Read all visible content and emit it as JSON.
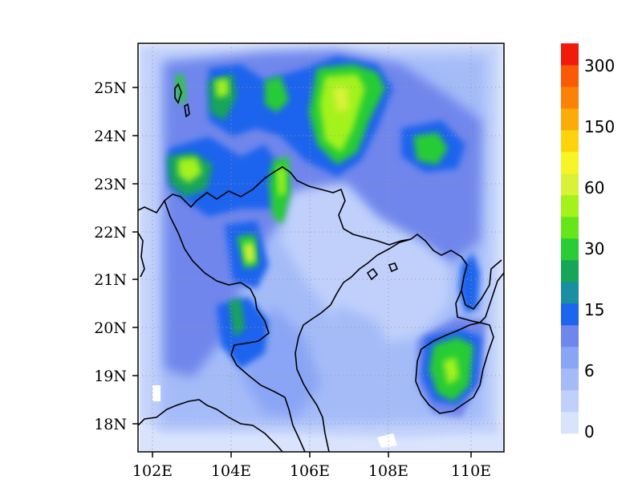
{
  "map": {
    "lon_labels": [
      "102E",
      "104E",
      "106E",
      "108E",
      "110E"
    ],
    "lat_labels": [
      "25N",
      "24N",
      "23N",
      "22N",
      "21N",
      "20N",
      "19N",
      "18N"
    ],
    "lon_range": [
      101.7,
      110.85
    ],
    "lat_range": [
      17.45,
      25.9
    ],
    "grid": true,
    "coastline_color": "#000000"
  },
  "colorbar": {
    "tick_labels": [
      "300",
      "150",
      "60",
      "30",
      "15",
      "6",
      "0"
    ],
    "colors": [
      "#d9e3fc",
      "#c0d0fb",
      "#a4bbf8",
      "#8aa5f5",
      "#6f86ec",
      "#1d64ee",
      "#1a8fa0",
      "#17a55a",
      "#28cc36",
      "#66e61a",
      "#a3f21c",
      "#d8f23a",
      "#f7f526",
      "#fdd40b",
      "#fcac0a",
      "#fb8206",
      "#f85a05",
      "#f21b0a"
    ]
  }
}
